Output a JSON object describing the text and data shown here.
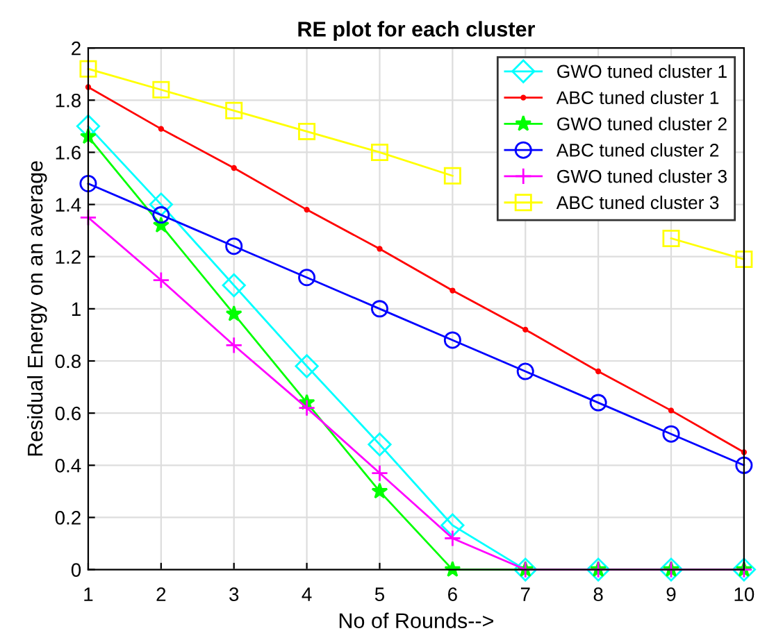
{
  "chart_data": {
    "type": "line",
    "title": "RE plot for each cluster",
    "xlabel": "No of Rounds-->",
    "ylabel": "Residual Energy on an average",
    "x": [
      1,
      2,
      3,
      4,
      5,
      6,
      7,
      8,
      9,
      10
    ],
    "series": [
      {
        "name": "GWO tuned cluster 1",
        "color": "#00ffff",
        "marker": "diamond",
        "values": [
          1.7,
          1.4,
          1.09,
          0.78,
          0.48,
          0.17,
          0,
          0,
          0,
          0
        ]
      },
      {
        "name": "ABC tuned cluster 1",
        "color": "#ff0000",
        "marker": "point",
        "values": [
          1.85,
          1.69,
          1.54,
          1.38,
          1.23,
          1.07,
          0.92,
          0.76,
          0.61,
          0.45
        ]
      },
      {
        "name": "GWO tuned cluster 2",
        "color": "#00ff00",
        "marker": "star",
        "values": [
          1.66,
          1.32,
          0.98,
          0.64,
          0.3,
          0,
          0,
          0,
          0,
          0
        ]
      },
      {
        "name": "ABC tuned cluster 2",
        "color": "#0000ff",
        "marker": "circle",
        "values": [
          1.48,
          1.36,
          1.24,
          1.12,
          1.0,
          0.88,
          0.76,
          0.64,
          0.52,
          0.4
        ]
      },
      {
        "name": "GWO tuned cluster 3",
        "color": "#ff00ff",
        "marker": "cross",
        "values": [
          1.35,
          1.11,
          0.86,
          0.62,
          0.37,
          0.12,
          0,
          0,
          0,
          0
        ]
      },
      {
        "name": "ABC tuned cluster 3",
        "color": "#ffff00",
        "marker": "square",
        "values": [
          1.92,
          1.84,
          1.76,
          1.68,
          1.6,
          1.51,
          null,
          null,
          1.27,
          1.19
        ]
      }
    ],
    "xlim": [
      1,
      10
    ],
    "xticks": [
      1,
      2,
      3,
      4,
      5,
      6,
      7,
      8,
      9,
      10
    ],
    "ylim": [
      0,
      2
    ],
    "yticks": [
      0,
      0.2,
      0.4,
      0.6,
      0.8,
      1,
      1.2,
      1.4,
      1.6,
      1.8,
      2
    ],
    "grid": true,
    "legend": "top right",
    "line_style": "solid"
  }
}
